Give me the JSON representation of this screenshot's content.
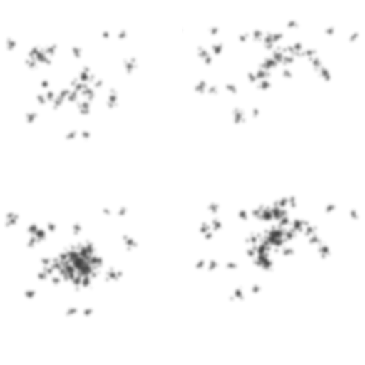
{
  "panels": [
    {
      "id": "top-left",
      "intensity": "light"
    },
    {
      "id": "top-right",
      "intensity": "light"
    },
    {
      "id": "bottom-left",
      "intensity": "dense"
    },
    {
      "id": "bottom-right",
      "intensity": "dense"
    }
  ],
  "colors": {
    "background": "#ffffff",
    "blob": "#3a3a3a"
  }
}
